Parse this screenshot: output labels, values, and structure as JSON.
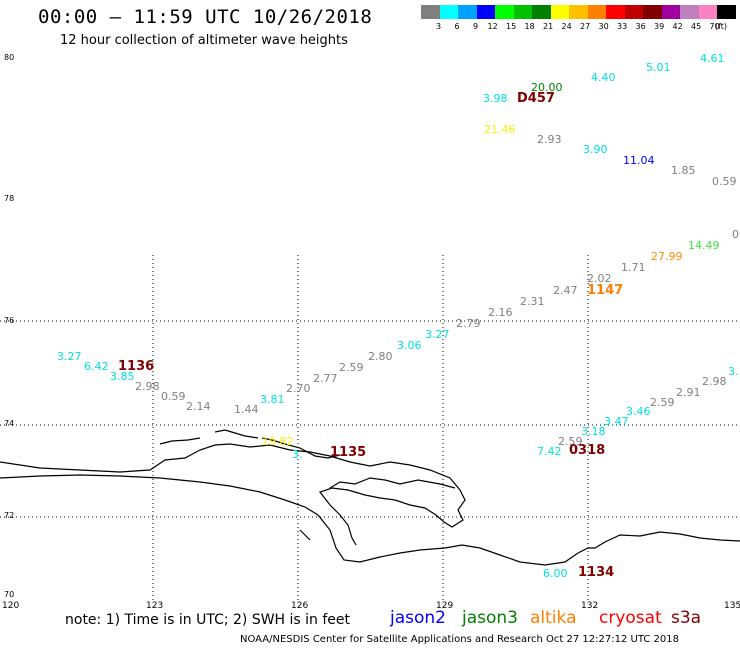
{
  "title": "00:00 – 11:59 UTC 10/26/2018",
  "subtitle": "12 hour collection of altimeter wave heights",
  "colorbar": {
    "colors": [
      "#808080",
      "#00ffff",
      "#00a0ff",
      "#0000ff",
      "#00ff00",
      "#00c000",
      "#008000",
      "#ffff00",
      "#ffc000",
      "#ff8000",
      "#ff0000",
      "#c00000",
      "#800000",
      "#a000a0",
      "#c080c0",
      "#ff80c0",
      "#000000"
    ],
    "labels": [
      "3",
      "6",
      "9",
      "12",
      "15",
      "18",
      "21",
      "24",
      "27",
      "30",
      "33",
      "36",
      "39",
      "42",
      "45",
      "70"
    ],
    "unit": "(ft)"
  },
  "axes": {
    "y_ticks": [
      "80",
      "78",
      "76",
      "74",
      "72",
      "70"
    ],
    "x_ticks": [
      "120",
      "123",
      "126",
      "129",
      "132",
      "135"
    ]
  },
  "note": "note:  1) Time is in UTC; 2) SWH is in feet",
  "satellites": [
    {
      "name": "jason2",
      "color": "#0000ff"
    },
    {
      "name": "jason3",
      "color": "#008000"
    },
    {
      "name": "altika",
      "color": "#ff8000"
    },
    {
      "name": "cryosat",
      "color": "#ff0000"
    },
    {
      "name": "s3a",
      "color": "#800000"
    }
  ],
  "credit": "NOAA/NESDIS Center for Satellite Applications and Research    Oct 27 12:27:12 UTC 2018",
  "observations": [
    {
      "v": "4.61",
      "c": "#00e0e0"
    },
    {
      "v": "5.01",
      "c": "#00e0e0"
    },
    {
      "v": "4.40",
      "c": "#00e0e0"
    },
    {
      "v": "20.00",
      "c": "#008000"
    },
    {
      "v": "3.98",
      "c": "#00e0e0"
    },
    {
      "v": "21.46",
      "c": "#ffee00"
    },
    {
      "v": "2.93",
      "c": "#808080"
    },
    {
      "v": "3.90",
      "c": "#00e0e0"
    },
    {
      "v": "11.04",
      "c": "#0000ff"
    },
    {
      "v": "1.85",
      "c": "#808080"
    },
    {
      "v": "0.59",
      "c": "#808080"
    },
    {
      "v": "0.",
      "c": "#808080"
    },
    {
      "v": "14.49",
      "c": "#40e040"
    },
    {
      "v": "27.99",
      "c": "#ff9000"
    },
    {
      "v": "1.71",
      "c": "#808080"
    },
    {
      "v": "2.02",
      "c": "#808080"
    },
    {
      "v": "2.47",
      "c": "#808080"
    },
    {
      "v": "2.31",
      "c": "#808080"
    },
    {
      "v": "2.16",
      "c": "#808080"
    },
    {
      "v": "2.79",
      "c": "#808080"
    },
    {
      "v": "3.27",
      "c": "#00e0e0"
    },
    {
      "v": "3.06",
      "c": "#00e0e0"
    },
    {
      "v": "2.80",
      "c": "#808080"
    },
    {
      "v": "2.59",
      "c": "#808080"
    },
    {
      "v": "2.77",
      "c": "#808080"
    },
    {
      "v": "2.70",
      "c": "#808080"
    },
    {
      "v": "3.81",
      "c": "#00e0e0"
    },
    {
      "v": "1.44",
      "c": "#808080"
    },
    {
      "v": "2.14",
      "c": "#808080"
    },
    {
      "v": "0.59",
      "c": "#808080"
    },
    {
      "v": "2.98",
      "c": "#808080"
    },
    {
      "v": "3.85",
      "c": "#00e0e0"
    },
    {
      "v": "6.42",
      "c": "#00e0e0"
    },
    {
      "v": "3.27",
      "c": "#00e0e0"
    },
    {
      "v": "3.",
      "c": "#00e0e0"
    },
    {
      "v": "2.98",
      "c": "#808080"
    },
    {
      "v": "2.91",
      "c": "#808080"
    },
    {
      "v": "2.59",
      "c": "#808080"
    },
    {
      "v": "3.46",
      "c": "#00e0e0"
    },
    {
      "v": "3.47",
      "c": "#00e0e0"
    },
    {
      "v": "3.18",
      "c": "#00e0e0"
    },
    {
      "v": "2.59",
      "c": "#808080"
    },
    {
      "v": "7.42",
      "c": "#00e0e0"
    },
    {
      "v": "6.00",
      "c": "#00e0e0"
    },
    {
      "v": "19.82",
      "c": "#ffee00"
    },
    {
      "v": "3.",
      "c": "#00e0e0"
    }
  ],
  "time_labels": [
    "D457",
    "1147",
    "1136",
    "1135",
    "0318",
    "1134"
  ]
}
